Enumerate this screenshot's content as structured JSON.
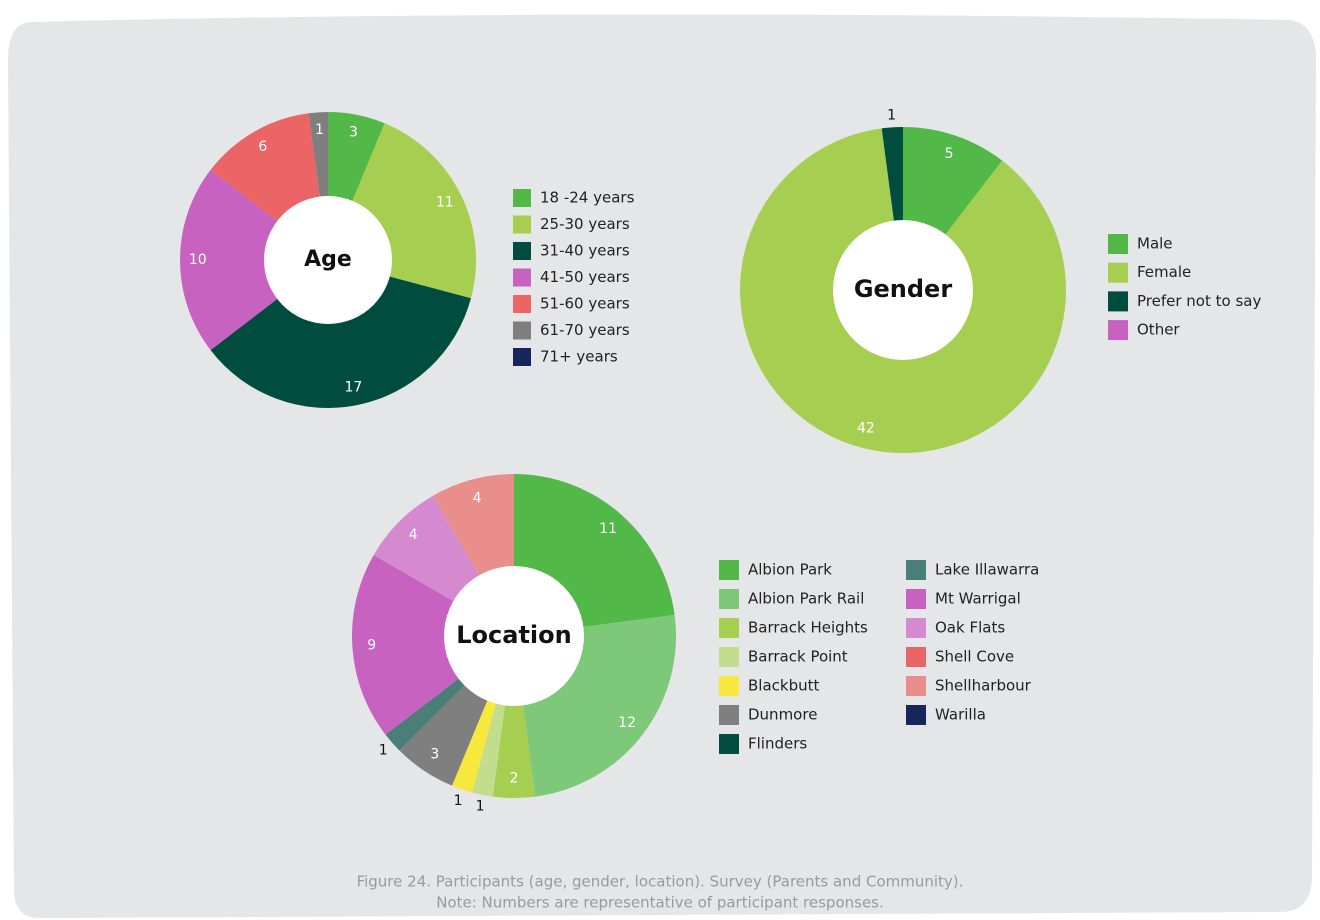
{
  "chart_data": [
    {
      "type": "donut",
      "title": "Age",
      "categories": [
        "18 -24 years",
        "25-30 years",
        "31-40 years",
        "41-50 years",
        "51-60 years",
        "61-70 years",
        "71+ years"
      ],
      "values": [
        3,
        11,
        17,
        10,
        6,
        1,
        0
      ],
      "colors": [
        "#52b848",
        "#a6cf52",
        "#004d40",
        "#c862c0",
        "#eb6566",
        "#7f7f7f",
        "#14265c"
      ]
    },
    {
      "type": "donut",
      "title": "Gender",
      "categories": [
        "Male",
        "Female",
        "Prefer not to say",
        "Other"
      ],
      "values": [
        5,
        42,
        1,
        0
      ],
      "colors": [
        "#52b848",
        "#a6cf52",
        "#004d40",
        "#c862c0"
      ]
    },
    {
      "type": "donut",
      "title": "Location",
      "categories": [
        "Albion Park",
        "Albion Park Rail",
        "Barrack Heights",
        "Barrack Point",
        "Blackbutt",
        "Dunmore",
        "Flinders",
        "Lake Illawarra",
        "Mt Warrigal",
        "Oak Flats",
        "Shell Cove",
        "Shellharbour",
        "Warilla"
      ],
      "values": [
        11,
        12,
        2,
        1,
        1,
        3,
        0,
        1,
        9,
        4,
        0,
        4,
        0
      ],
      "colors": [
        "#52b848",
        "#7ec87a",
        "#a6cf52",
        "#c3dd8e",
        "#f7e83e",
        "#7f7f7f",
        "#004d40",
        "#4a7f79",
        "#c862c0",
        "#d58ad0",
        "#eb6566",
        "#e98e8b",
        "#14265c"
      ]
    }
  ],
  "caption": [
    "Figure 24. Participants (age, gender, location). Survey (Parents and Community).",
    "Note: Numbers are representative of participant responses."
  ]
}
